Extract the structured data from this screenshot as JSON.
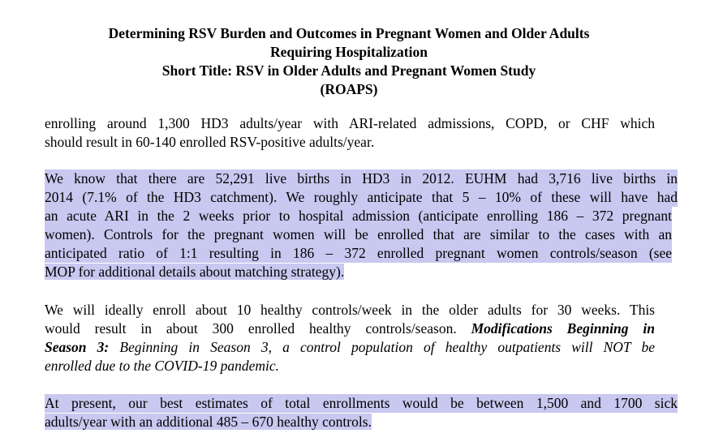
{
  "header": {
    "title_line1": "Determining RSV Burden and Outcomes in Pregnant Women and Older Adults",
    "title_line2": "Requiring Hospitalization",
    "short_title": "Short Title: RSV in Older Adults and Pregnant Women Study",
    "acronym": "(ROAPS)"
  },
  "p1": {
    "l1": "enrolling around 1,300 HD3 adults/year with ARI-related admissions, COPD, or CHF which",
    "l2": "should result in 60-140 enrolled RSV-positive adults/year."
  },
  "p2": {
    "l1": "We know that there are 52,291 live births in HD3 in 2012.  EUHM had 3,716 live births in",
    "l2": "2014 (7.1% of the HD3 catchment). We roughly anticipate that 5 – 10% of these will have had",
    "l3": "an acute ARI in the 2 weeks prior to hospital admission (anticipate enrolling 186 – 372 pregnant",
    "l4": "women). Controls for the pregnant women will be enrolled that are similar to the cases with an",
    "l5": "anticipated ratio of 1:1 resulting in 186 – 372 enrolled pregnant women controls/season (see",
    "l6": "MOP for additional details about matching strategy)."
  },
  "p3": {
    "l1": "We will ideally enroll about 10 healthy controls/week in the older adults for 30 weeks.  This",
    "l2a": "would result in about 300 enrolled healthy controls/season.  ",
    "l2b": "Modifications Beginning in",
    "l3a": "Season 3:",
    "l3b": " Beginning in Season 3, a control population of healthy outpatients will NOT be",
    "l4": "enrolled due to the COVID-19 pandemic."
  },
  "p4": {
    "l1": "At present, our best estimates of total enrollments would be between 1,500 and 1700 sick",
    "l2": "adults/year with an additional 485 – 670 healthy controls."
  }
}
